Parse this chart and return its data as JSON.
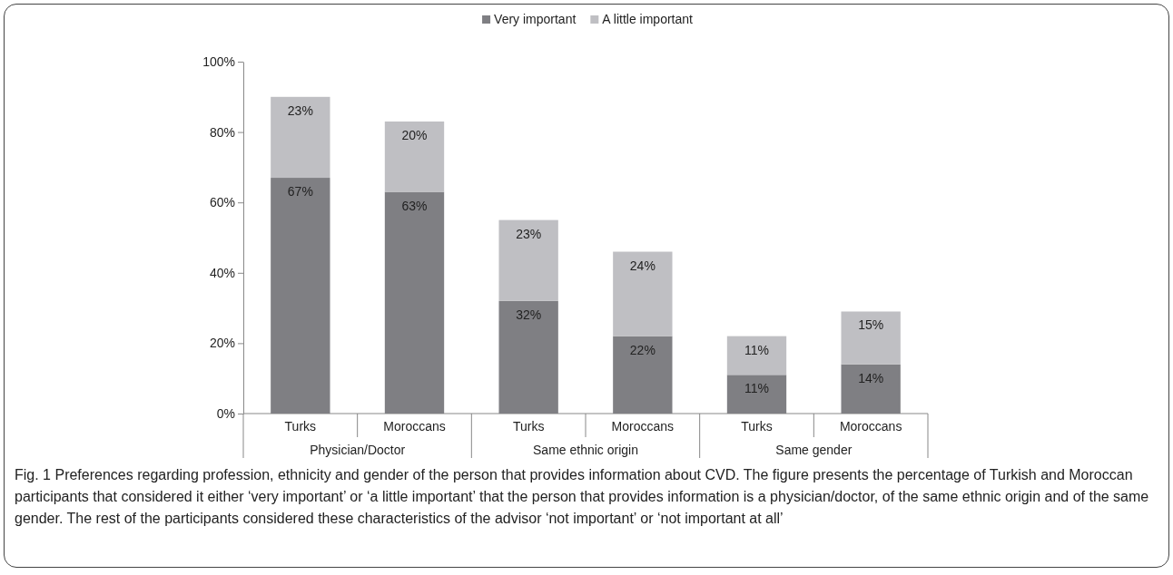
{
  "chart_data": {
    "type": "bar",
    "stacked": true,
    "title": "Fig. 1 Preferences regarding profession, ethnicity and gender of the person that provides information about CVD. The figure presents the percentage of Turkish and Moroccan participants that considered it either ‘very important’ or ‘a little important’ that the person that provides information is a physician/doctor, of the same ethnic origin and of the same gender. The rest of the participants considered these characteristics of the advisor ‘not important’ or ‘not important at all’",
    "categories": [
      "Turks",
      "Moroccans",
      "Turks",
      "Moroccans",
      "Turks",
      "Moroccans"
    ],
    "annotations": [
      "Physician/Doctor",
      "Same ethnic origin",
      "Same gender"
    ],
    "series": [
      {
        "name": "Very important",
        "color": "#7f7f83",
        "values": [
          67,
          63,
          32,
          22,
          11,
          14
        ],
        "value_labels": [
          "67%",
          "63%",
          "32%",
          "22%",
          "11%",
          "14%"
        ]
      },
      {
        "name": "A little important",
        "color": "#bfbfc3",
        "values": [
          23,
          20,
          23,
          24,
          11,
          15
        ],
        "value_labels": [
          "23%",
          "20%",
          "23%",
          "24%",
          "11%",
          "15%"
        ]
      }
    ],
    "ylim": [
      0,
      100
    ],
    "yticks": [
      {
        "value": 0,
        "label": "0%"
      },
      {
        "value": 20,
        "label": "20%"
      },
      {
        "value": 40,
        "label": "40%"
      },
      {
        "value": 60,
        "label": "60%"
      },
      {
        "value": 80,
        "label": "80%"
      },
      {
        "value": 100,
        "label": "100%"
      }
    ],
    "legend": "top"
  }
}
